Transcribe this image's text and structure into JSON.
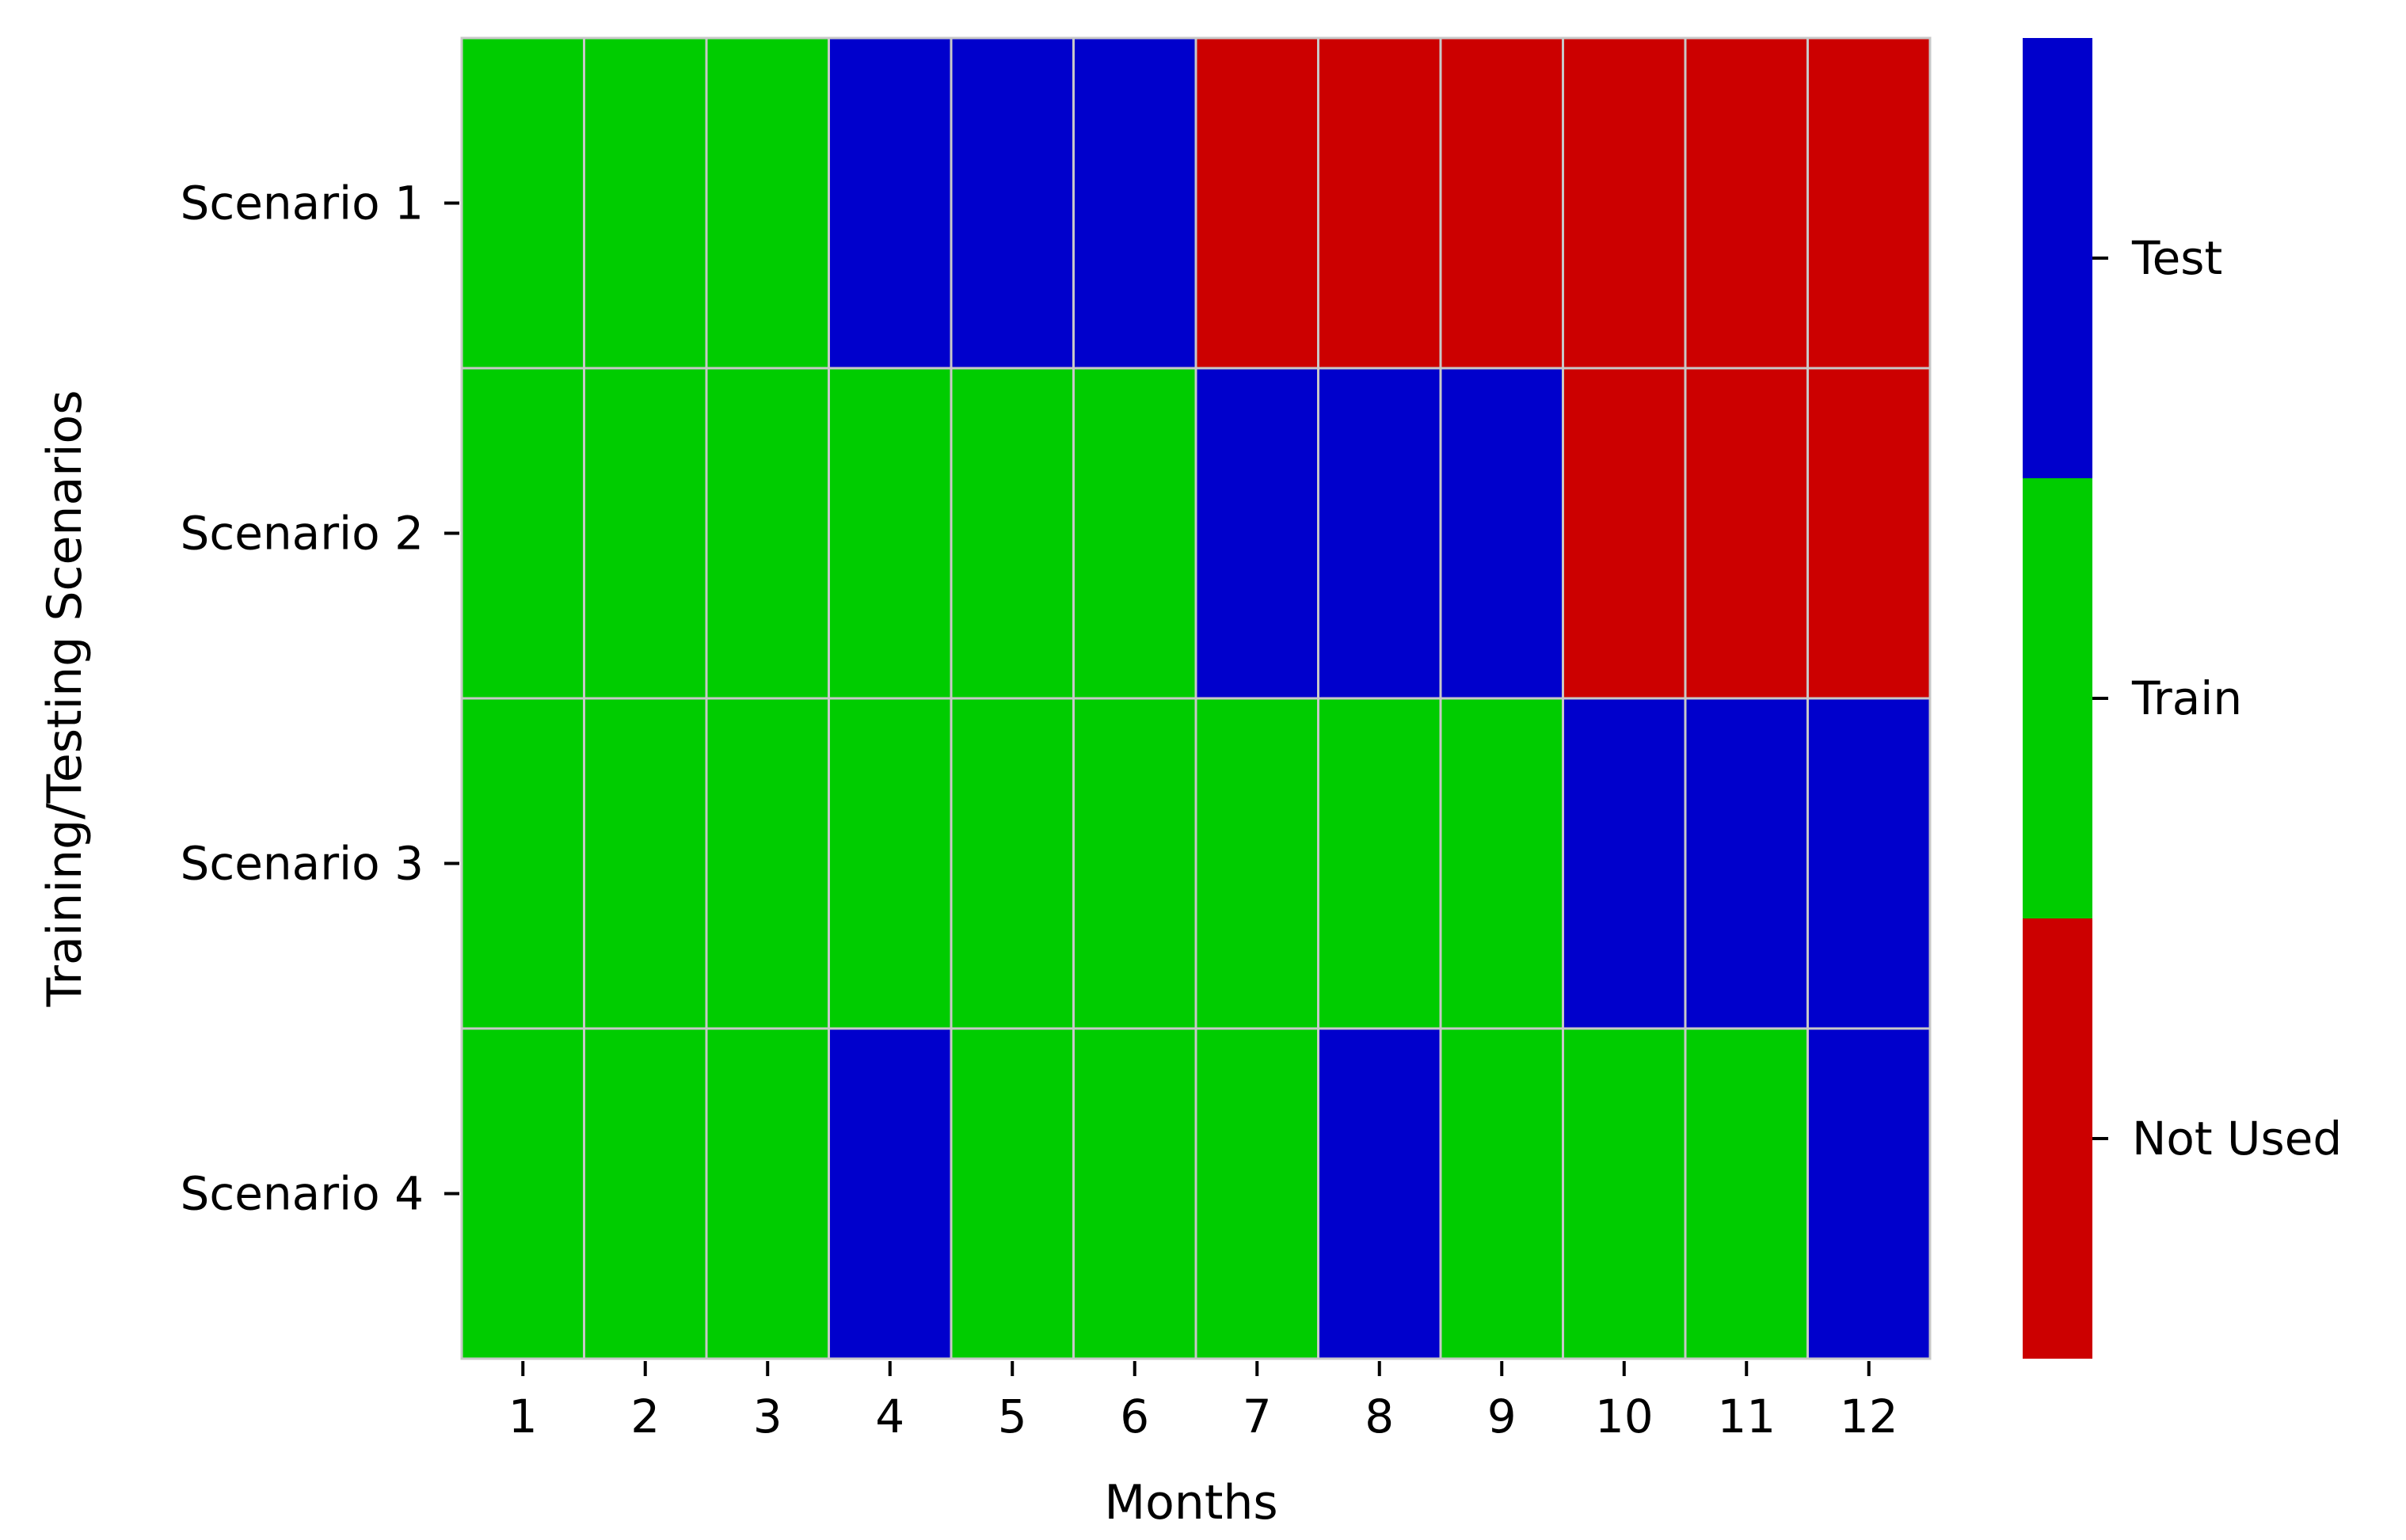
{
  "chart_data": {
    "type": "heatmap",
    "title": "",
    "xlabel": "Months",
    "ylabel": "Training/Testing Scenarios",
    "x_categories": [
      "1",
      "2",
      "3",
      "4",
      "5",
      "6",
      "7",
      "8",
      "9",
      "10",
      "11",
      "12"
    ],
    "y_categories": [
      "Scenario 1",
      "Scenario 2",
      "Scenario 3",
      "Scenario 4"
    ],
    "values": [
      [
        1,
        1,
        1,
        2,
        2,
        2,
        0,
        0,
        0,
        0,
        0,
        0
      ],
      [
        1,
        1,
        1,
        1,
        1,
        1,
        2,
        2,
        2,
        0,
        0,
        0
      ],
      [
        1,
        1,
        1,
        1,
        1,
        1,
        1,
        1,
        1,
        2,
        2,
        2
      ],
      [
        1,
        1,
        1,
        2,
        1,
        1,
        1,
        2,
        1,
        1,
        1,
        2
      ]
    ],
    "colorbar": {
      "labels": [
        "Not Used",
        "Train",
        "Test"
      ],
      "colors": [
        "#cc0000",
        "#00cc00",
        "#0000cc"
      ],
      "placement": "right"
    },
    "grid": false,
    "legend": "colorbar-right"
  }
}
